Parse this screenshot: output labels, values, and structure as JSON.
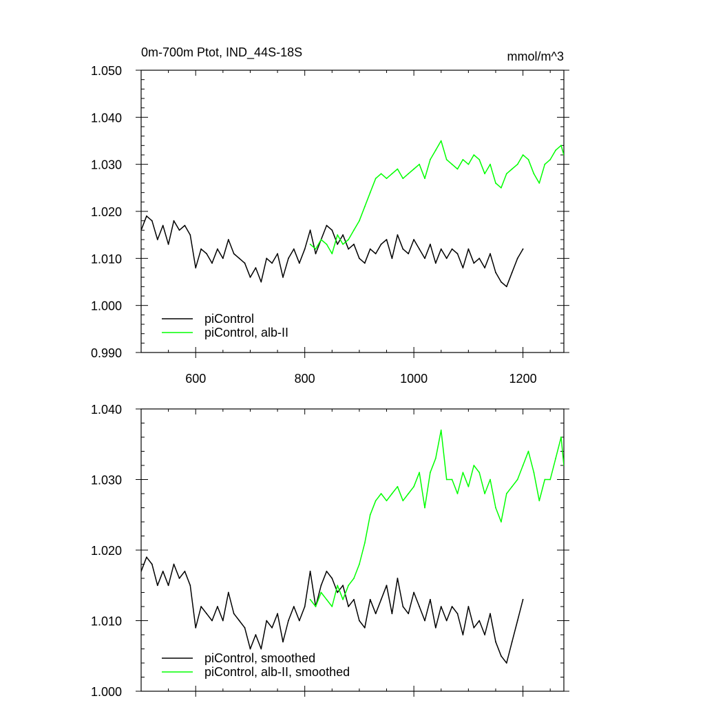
{
  "chart_data": [
    {
      "type": "line",
      "title": "0m-700m Ptot, IND_44S-18S",
      "units": "mmol/m^3",
      "xlim": [
        500,
        1275
      ],
      "ylim": [
        0.99,
        1.05
      ],
      "xticks": [
        600,
        800,
        1000,
        1200
      ],
      "xtick_labels": [
        "600",
        "800",
        "1000",
        "1200"
      ],
      "yticks": [
        0.99,
        1.0,
        1.01,
        1.02,
        1.03,
        1.04,
        1.05
      ],
      "ytick_labels": [
        "0.990",
        "1.000",
        "1.010",
        "1.020",
        "1.030",
        "1.040",
        "1.050"
      ],
      "legend_position": "bottom-left",
      "series": [
        {
          "name": "piControl",
          "color": "#000000",
          "x": [
            500,
            510,
            520,
            530,
            540,
            550,
            560,
            570,
            580,
            590,
            600,
            610,
            620,
            630,
            640,
            650,
            660,
            670,
            680,
            690,
            700,
            710,
            720,
            730,
            740,
            750,
            760,
            770,
            780,
            790,
            800,
            810,
            820,
            830,
            840,
            850,
            860,
            870,
            880,
            890,
            900,
            910,
            920,
            930,
            940,
            950,
            960,
            970,
            980,
            990,
            1000,
            1010,
            1020,
            1030,
            1040,
            1050,
            1060,
            1070,
            1080,
            1090,
            1100,
            1110,
            1120,
            1130,
            1140,
            1150,
            1160,
            1170,
            1180,
            1190,
            1200
          ],
          "y": [
            1.016,
            1.019,
            1.018,
            1.014,
            1.017,
            1.013,
            1.018,
            1.016,
            1.017,
            1.015,
            1.008,
            1.012,
            1.011,
            1.009,
            1.012,
            1.01,
            1.014,
            1.011,
            1.01,
            1.009,
            1.006,
            1.008,
            1.005,
            1.01,
            1.009,
            1.011,
            1.006,
            1.01,
            1.012,
            1.009,
            1.012,
            1.016,
            1.011,
            1.014,
            1.017,
            1.016,
            1.013,
            1.015,
            1.012,
            1.013,
            1.01,
            1.009,
            1.012,
            1.011,
            1.013,
            1.014,
            1.01,
            1.015,
            1.012,
            1.011,
            1.014,
            1.012,
            1.01,
            1.013,
            1.009,
            1.012,
            1.01,
            1.012,
            1.011,
            1.008,
            1.012,
            1.009,
            1.01,
            1.008,
            1.011,
            1.007,
            1.005,
            1.004,
            1.007,
            1.01,
            1.012
          ]
        },
        {
          "name": "piControl, alb-II",
          "color": "#00ff00",
          "x": [
            810,
            820,
            830,
            840,
            850,
            860,
            870,
            880,
            890,
            900,
            910,
            920,
            930,
            940,
            950,
            960,
            970,
            980,
            990,
            1000,
            1010,
            1020,
            1030,
            1040,
            1050,
            1060,
            1070,
            1080,
            1090,
            1100,
            1110,
            1120,
            1130,
            1140,
            1150,
            1160,
            1170,
            1180,
            1190,
            1200,
            1210,
            1220,
            1230,
            1240,
            1250,
            1260,
            1270,
            1275
          ],
          "y": [
            1.013,
            1.012,
            1.014,
            1.013,
            1.011,
            1.015,
            1.013,
            1.014,
            1.016,
            1.018,
            1.021,
            1.024,
            1.027,
            1.028,
            1.027,
            1.028,
            1.029,
            1.027,
            1.028,
            1.029,
            1.03,
            1.027,
            1.031,
            1.033,
            1.035,
            1.031,
            1.03,
            1.029,
            1.031,
            1.03,
            1.032,
            1.031,
            1.028,
            1.03,
            1.026,
            1.025,
            1.028,
            1.029,
            1.03,
            1.032,
            1.031,
            1.028,
            1.026,
            1.03,
            1.031,
            1.033,
            1.034,
            1.032
          ]
        }
      ]
    },
    {
      "type": "line",
      "xlim": [
        500,
        1275
      ],
      "ylim": [
        1.0,
        1.04
      ],
      "xticks": [
        600,
        800,
        1000,
        1200
      ],
      "yticks": [
        1.0,
        1.01,
        1.02,
        1.03,
        1.04
      ],
      "ytick_labels": [
        "1.000",
        "1.010",
        "1.020",
        "1.030",
        "1.040"
      ],
      "legend_position": "bottom-left",
      "series": [
        {
          "name": "piControl, smoothed",
          "color": "#000000",
          "x": [
            500,
            510,
            520,
            530,
            540,
            550,
            560,
            570,
            580,
            590,
            600,
            610,
            620,
            630,
            640,
            650,
            660,
            670,
            680,
            690,
            700,
            710,
            720,
            730,
            740,
            750,
            760,
            770,
            780,
            790,
            800,
            810,
            820,
            830,
            840,
            850,
            860,
            870,
            880,
            890,
            900,
            910,
            920,
            930,
            940,
            950,
            960,
            970,
            980,
            990,
            1000,
            1010,
            1020,
            1030,
            1040,
            1050,
            1060,
            1070,
            1080,
            1090,
            1100,
            1110,
            1120,
            1130,
            1140,
            1150,
            1160,
            1170,
            1180,
            1190,
            1200
          ],
          "y": [
            1.017,
            1.019,
            1.018,
            1.015,
            1.017,
            1.015,
            1.018,
            1.016,
            1.017,
            1.015,
            1.009,
            1.012,
            1.011,
            1.01,
            1.012,
            1.01,
            1.014,
            1.011,
            1.01,
            1.009,
            1.006,
            1.008,
            1.006,
            1.01,
            1.009,
            1.011,
            1.007,
            1.01,
            1.012,
            1.01,
            1.012,
            1.017,
            1.012,
            1.015,
            1.017,
            1.016,
            1.014,
            1.015,
            1.012,
            1.013,
            1.01,
            1.009,
            1.013,
            1.011,
            1.013,
            1.015,
            1.011,
            1.016,
            1.012,
            1.011,
            1.014,
            1.012,
            1.01,
            1.013,
            1.009,
            1.012,
            1.01,
            1.012,
            1.011,
            1.008,
            1.012,
            1.009,
            1.01,
            1.008,
            1.011,
            1.007,
            1.005,
            1.004,
            1.007,
            1.01,
            1.013
          ]
        },
        {
          "name": "piControl, alb-II, smoothed",
          "color": "#00ff00",
          "x": [
            810,
            820,
            830,
            840,
            850,
            860,
            870,
            880,
            890,
            900,
            910,
            920,
            930,
            940,
            950,
            960,
            970,
            980,
            990,
            1000,
            1010,
            1020,
            1030,
            1040,
            1050,
            1060,
            1070,
            1080,
            1090,
            1100,
            1110,
            1120,
            1130,
            1140,
            1150,
            1160,
            1170,
            1180,
            1190,
            1200,
            1210,
            1220,
            1230,
            1240,
            1250,
            1260,
            1270,
            1275
          ],
          "y": [
            1.013,
            1.012,
            1.014,
            1.013,
            1.012,
            1.015,
            1.013,
            1.015,
            1.016,
            1.018,
            1.021,
            1.025,
            1.027,
            1.028,
            1.027,
            1.028,
            1.029,
            1.027,
            1.028,
            1.029,
            1.031,
            1.026,
            1.031,
            1.033,
            1.037,
            1.03,
            1.03,
            1.028,
            1.031,
            1.029,
            1.032,
            1.031,
            1.028,
            1.03,
            1.026,
            1.024,
            1.028,
            1.029,
            1.03,
            1.032,
            1.034,
            1.031,
            1.027,
            1.03,
            1.03,
            1.033,
            1.036,
            1.032
          ]
        }
      ]
    }
  ]
}
